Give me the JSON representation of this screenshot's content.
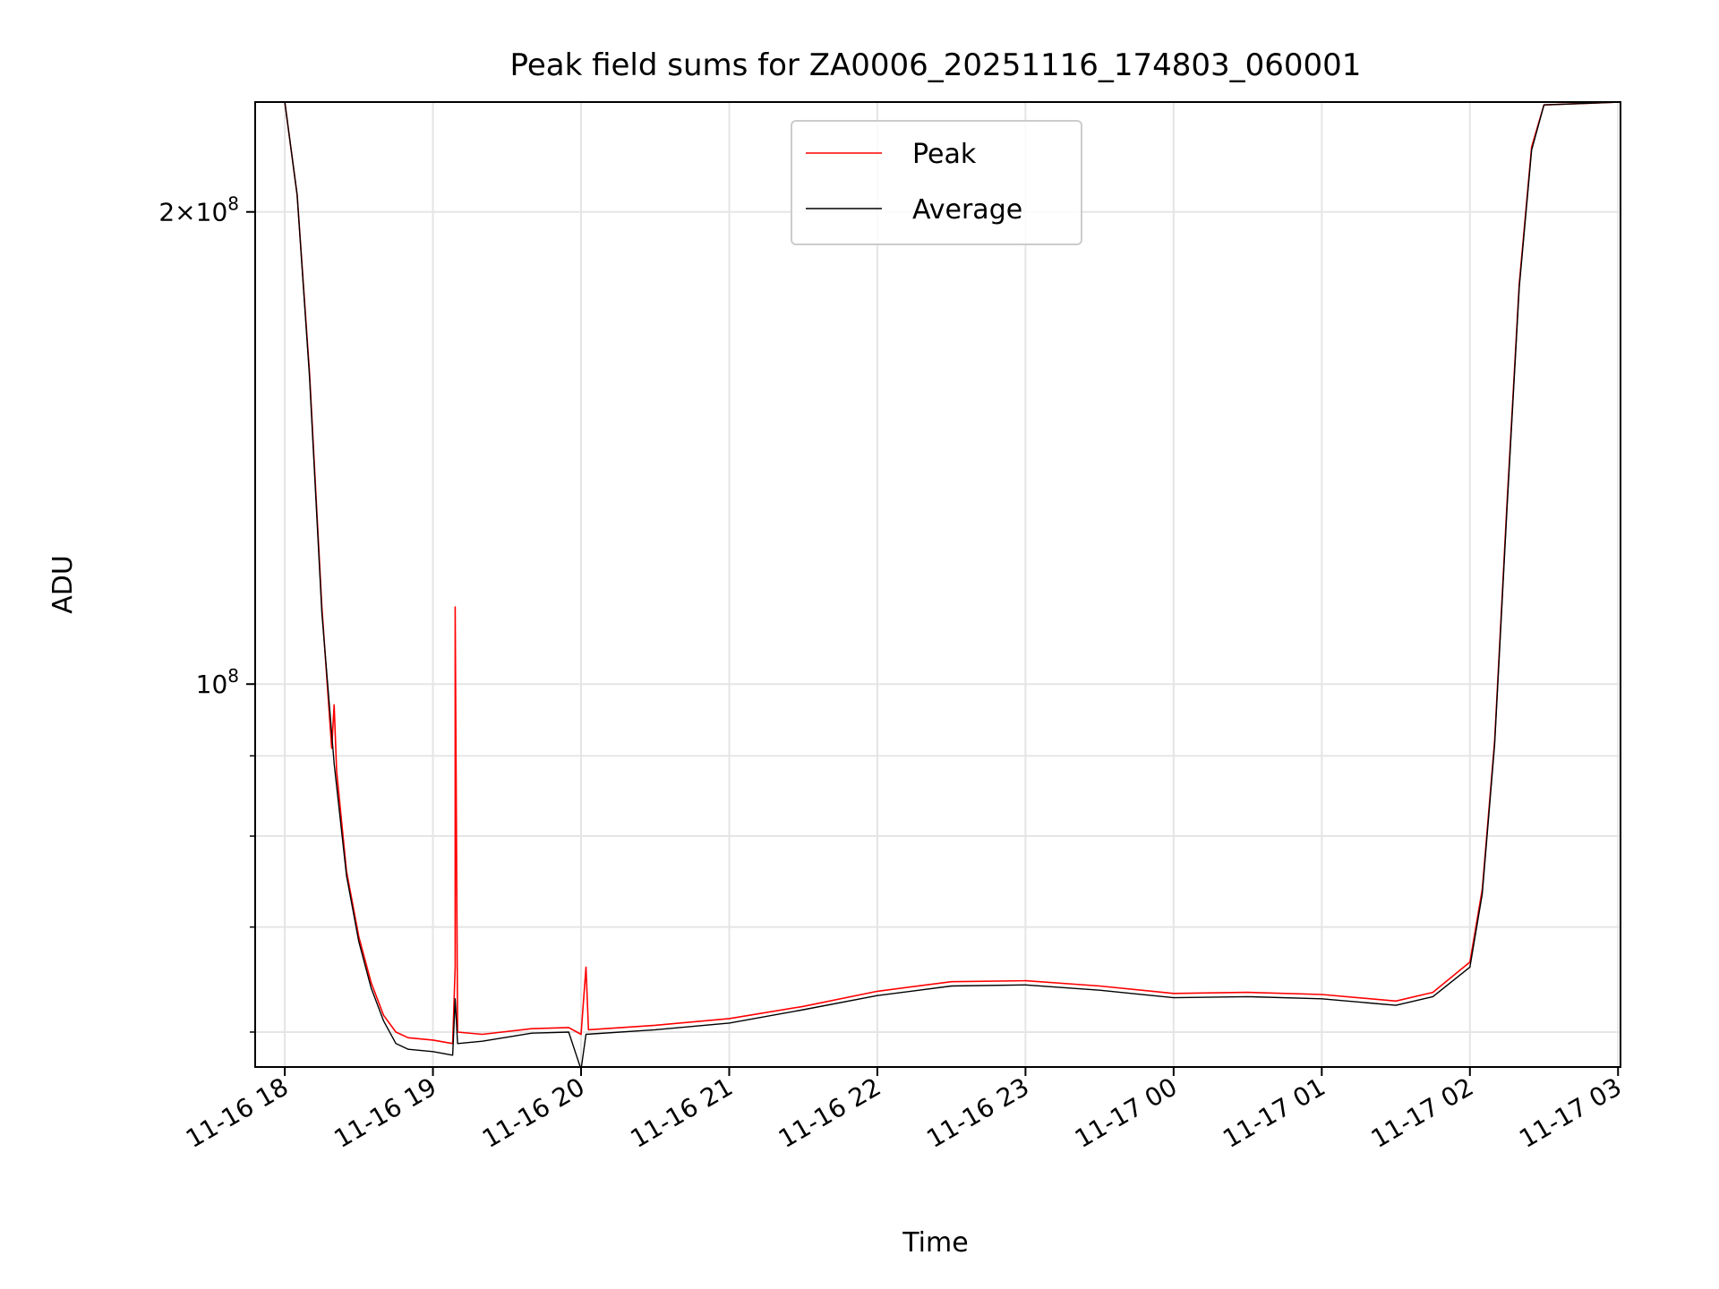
{
  "chart_data": {
    "type": "line",
    "title": "Peak field sums for ZA0006_20251116_174803_060001",
    "xlabel": "Time",
    "ylabel": "ADU",
    "yscale": "log",
    "grid": true,
    "legend": "upper center",
    "x_tick_labels": [
      "11-16 18",
      "11-16 19",
      "11-16 20",
      "11-16 21",
      "11-16 22",
      "11-16 23",
      "11-17 00",
      "11-17 01",
      "11-17 02",
      "11-17 03"
    ],
    "x_tick_values": [
      "2025-11-16 18:00",
      "2025-11-16 19:00",
      "2025-11-16 20:00",
      "2025-11-16 21:00",
      "2025-11-16 22:00",
      "2025-11-16 23:00",
      "2025-11-17 00:00",
      "2025-11-17 01:00",
      "2025-11-17 02:00",
      "2025-11-17 03:00"
    ],
    "xlim": [
      "2025-11-16 17:48",
      "2025-11-17 03:01"
    ],
    "ylim": [
      57000000,
      235000000
    ],
    "y_major_ticks": [
      {
        "value": 100000000,
        "mantissa": "",
        "base": "10",
        "exponent": "8"
      },
      {
        "value": 200000000,
        "mantissa": "2",
        "base": "10",
        "exponent": "8"
      }
    ],
    "y_minor_ticks": [
      60000000,
      70000000,
      80000000,
      90000000
    ],
    "series": [
      {
        "name": "Peak",
        "color": "#ff0000",
        "points": [
          [
            "2025-11-16 18:00",
            235000000
          ],
          [
            "2025-11-16 18:05",
            205000000
          ],
          [
            "2025-11-16 18:10",
            158000000
          ],
          [
            "2025-11-16 18:15",
            112000000
          ],
          [
            "2025-11-16 18:19",
            91000000
          ],
          [
            "2025-11-16 18:20",
            97000000
          ],
          [
            "2025-11-16 18:21",
            88000000
          ],
          [
            "2025-11-16 18:25",
            76000000
          ],
          [
            "2025-11-16 18:30",
            69000000
          ],
          [
            "2025-11-16 18:35",
            64500000
          ],
          [
            "2025-11-16 18:40",
            61500000
          ],
          [
            "2025-11-16 18:45",
            60000000
          ],
          [
            "2025-11-16 18:50",
            59500000
          ],
          [
            "2025-11-16 19:00",
            59300000
          ],
          [
            "2025-11-16 19:08",
            59000000
          ],
          [
            "2025-11-16 19:09",
            66000000
          ],
          [
            "2025-11-16 19:09",
            112000000
          ],
          [
            "2025-11-16 19:10",
            60000000
          ],
          [
            "2025-11-16 19:20",
            59800000
          ],
          [
            "2025-11-16 19:40",
            60300000
          ],
          [
            "2025-11-16 19:55",
            60400000
          ],
          [
            "2025-11-16 20:00",
            59800000
          ],
          [
            "2025-11-16 20:02",
            66000000
          ],
          [
            "2025-11-16 20:03",
            60200000
          ],
          [
            "2025-11-16 20:30",
            60600000
          ],
          [
            "2025-11-16 21:00",
            61200000
          ],
          [
            "2025-11-16 21:30",
            62300000
          ],
          [
            "2025-11-16 22:00",
            63700000
          ],
          [
            "2025-11-16 22:30",
            64600000
          ],
          [
            "2025-11-16 23:00",
            64700000
          ],
          [
            "2025-11-16 23:30",
            64200000
          ],
          [
            "2025-11-17 00:00",
            63500000
          ],
          [
            "2025-11-17 00:30",
            63600000
          ],
          [
            "2025-11-17 01:00",
            63400000
          ],
          [
            "2025-11-17 01:30",
            62800000
          ],
          [
            "2025-11-17 01:45",
            63600000
          ],
          [
            "2025-11-17 02:00",
            66500000
          ],
          [
            "2025-11-17 02:05",
            74000000
          ],
          [
            "2025-11-17 02:10",
            92000000
          ],
          [
            "2025-11-17 02:15",
            130000000
          ],
          [
            "2025-11-17 02:20",
            180000000
          ],
          [
            "2025-11-17 02:25",
            220000000
          ],
          [
            "2025-11-17 02:30",
            234000000
          ],
          [
            "2025-11-17 03:01",
            235000000
          ]
        ]
      },
      {
        "name": "Average",
        "color": "#000000",
        "points": [
          [
            "2025-11-16 18:00",
            235000000
          ],
          [
            "2025-11-16 18:05",
            205000000
          ],
          [
            "2025-11-16 18:10",
            157000000
          ],
          [
            "2025-11-16 18:15",
            111000000
          ],
          [
            "2025-11-16 18:20",
            89000000
          ],
          [
            "2025-11-16 18:25",
            75500000
          ],
          [
            "2025-11-16 18:30",
            68500000
          ],
          [
            "2025-11-16 18:35",
            64000000
          ],
          [
            "2025-11-16 18:40",
            61000000
          ],
          [
            "2025-11-16 18:45",
            59000000
          ],
          [
            "2025-11-16 18:50",
            58500000
          ],
          [
            "2025-11-16 19:00",
            58300000
          ],
          [
            "2025-11-16 19:08",
            58000000
          ],
          [
            "2025-11-16 19:09",
            63000000
          ],
          [
            "2025-11-16 19:10",
            59000000
          ],
          [
            "2025-11-16 19:20",
            59200000
          ],
          [
            "2025-11-16 19:40",
            59900000
          ],
          [
            "2025-11-16 19:55",
            60000000
          ],
          [
            "2025-11-16 20:00",
            56800000
          ],
          [
            "2025-11-16 20:02",
            59800000
          ],
          [
            "2025-11-16 20:30",
            60200000
          ],
          [
            "2025-11-16 21:00",
            60800000
          ],
          [
            "2025-11-16 21:30",
            62000000
          ],
          [
            "2025-11-16 22:00",
            63300000
          ],
          [
            "2025-11-16 22:30",
            64200000
          ],
          [
            "2025-11-16 23:00",
            64300000
          ],
          [
            "2025-11-16 23:30",
            63800000
          ],
          [
            "2025-11-17 00:00",
            63100000
          ],
          [
            "2025-11-17 00:30",
            63200000
          ],
          [
            "2025-11-17 01:00",
            63000000
          ],
          [
            "2025-11-17 01:30",
            62400000
          ],
          [
            "2025-11-17 01:45",
            63200000
          ],
          [
            "2025-11-17 02:00",
            66000000
          ],
          [
            "2025-11-17 02:05",
            73500000
          ],
          [
            "2025-11-17 02:10",
            91500000
          ],
          [
            "2025-11-17 02:15",
            129000000
          ],
          [
            "2025-11-17 02:20",
            179000000
          ],
          [
            "2025-11-17 02:25",
            219000000
          ],
          [
            "2025-11-17 02:30",
            234000000
          ],
          [
            "2025-11-17 03:01",
            235000000
          ]
        ]
      }
    ]
  }
}
